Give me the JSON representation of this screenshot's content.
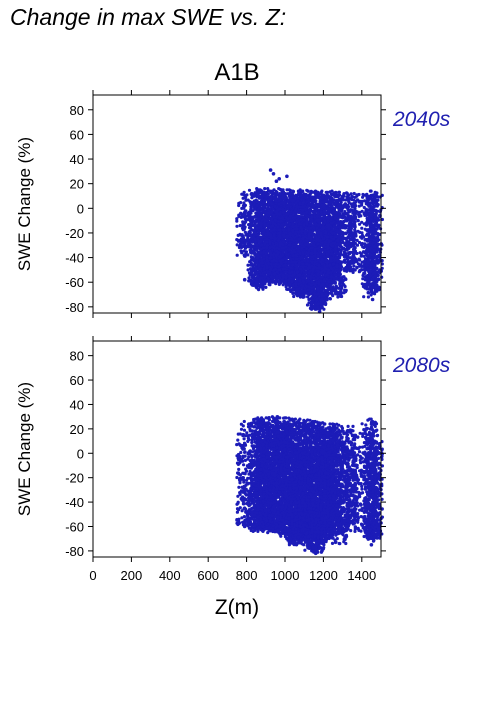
{
  "figure": {
    "title": "Change in max SWE vs. Z:",
    "scenario": "A1B",
    "xlabel": "Z(m)",
    "point_color": "#1c1cb8",
    "label_color": "#2020b0"
  },
  "chart_data": [
    {
      "type": "scatter",
      "panel_label": "2040s",
      "ylabel": "SWE Change (%)",
      "xlim": [
        0,
        1500
      ],
      "ylim": [
        -85,
        92
      ],
      "xticks": [
        0,
        200,
        400,
        600,
        800,
        1000,
        1200,
        1400
      ],
      "yticks": [
        -80,
        -60,
        -40,
        -20,
        0,
        20,
        40,
        60,
        80
      ],
      "show_x_tick_labels": false,
      "columns": [
        {
          "x": 790,
          "ymin": -39,
          "ymax": 13
        },
        {
          "x": 848,
          "ymin": -64,
          "ymax": 16
        },
        {
          "x": 862,
          "ymin": -66,
          "ymax": 15
        },
        {
          "x": 878,
          "ymin": -62,
          "ymax": 15
        },
        {
          "x": 895,
          "ymin": -58,
          "ymax": 16
        },
        {
          "x": 912,
          "ymin": -60,
          "ymax": 16
        },
        {
          "x": 928,
          "ymin": -62,
          "ymax": 14
        },
        {
          "x": 945,
          "ymin": -56,
          "ymax": 15
        },
        {
          "x": 962,
          "ymin": -55,
          "ymax": 16
        },
        {
          "x": 978,
          "ymin": -58,
          "ymax": 15
        },
        {
          "x": 995,
          "ymin": -62,
          "ymax": 15
        },
        {
          "x": 1012,
          "ymin": -60,
          "ymax": 15
        },
        {
          "x": 1028,
          "ymin": -62,
          "ymax": 15
        },
        {
          "x": 1045,
          "ymin": -66,
          "ymax": 14
        },
        {
          "x": 1062,
          "ymin": -70,
          "ymax": 14
        },
        {
          "x": 1078,
          "ymin": -72,
          "ymax": 15
        },
        {
          "x": 1095,
          "ymin": -68,
          "ymax": 14
        },
        {
          "x": 1112,
          "ymin": -66,
          "ymax": 14
        },
        {
          "x": 1128,
          "ymin": -74,
          "ymax": 14
        },
        {
          "x": 1145,
          "ymin": -80,
          "ymax": 13
        },
        {
          "x": 1162,
          "ymin": -82,
          "ymax": 14
        },
        {
          "x": 1178,
          "ymin": -82,
          "ymax": 13
        },
        {
          "x": 1195,
          "ymin": -75,
          "ymax": 14
        },
        {
          "x": 1212,
          "ymin": -70,
          "ymax": 13
        },
        {
          "x": 1228,
          "ymin": -66,
          "ymax": 13
        },
        {
          "x": 1245,
          "ymin": -58,
          "ymax": 14
        },
        {
          "x": 1262,
          "ymin": -60,
          "ymax": 13
        },
        {
          "x": 1280,
          "ymin": -72,
          "ymax": 13
        },
        {
          "x": 1330,
          "ymin": -46,
          "ymax": 12
        },
        {
          "x": 1360,
          "ymin": -52,
          "ymax": 12
        },
        {
          "x": 1442,
          "ymin": -72,
          "ymax": 14
        },
        {
          "x": 1455,
          "ymin": -68,
          "ymax": 14
        },
        {
          "x": 1466,
          "ymin": -58,
          "ymax": 13
        }
      ],
      "outliers": [
        {
          "x": 790,
          "y": -58
        },
        {
          "x": 925,
          "y": 31
        },
        {
          "x": 940,
          "y": 28
        },
        {
          "x": 955,
          "y": 22
        },
        {
          "x": 1010,
          "y": 26
        },
        {
          "x": 970,
          "y": 24
        },
        {
          "x": 1180,
          "y": -84
        },
        {
          "x": 1456,
          "y": -74
        }
      ]
    },
    {
      "type": "scatter",
      "panel_label": "2080s",
      "ylabel": "SWE Change (%)",
      "xlim": [
        0,
        1500
      ],
      "ylim": [
        -85,
        92
      ],
      "xticks": [
        0,
        200,
        400,
        600,
        800,
        1000,
        1200,
        1400
      ],
      "yticks": [
        -80,
        -60,
        -40,
        -20,
        0,
        20,
        40,
        60,
        80
      ],
      "show_x_tick_labels": true,
      "columns": [
        {
          "x": 790,
          "ymin": -59,
          "ymax": 26
        },
        {
          "x": 848,
          "ymin": -62,
          "ymax": 28
        },
        {
          "x": 862,
          "ymin": -64,
          "ymax": 29
        },
        {
          "x": 878,
          "ymin": -60,
          "ymax": 29
        },
        {
          "x": 895,
          "ymin": -62,
          "ymax": 29
        },
        {
          "x": 912,
          "ymin": -65,
          "ymax": 29
        },
        {
          "x": 928,
          "ymin": -62,
          "ymax": 30
        },
        {
          "x": 945,
          "ymin": -60,
          "ymax": 29
        },
        {
          "x": 962,
          "ymin": -63,
          "ymax": 30
        },
        {
          "x": 978,
          "ymin": -65,
          "ymax": 29
        },
        {
          "x": 995,
          "ymin": -66,
          "ymax": 29
        },
        {
          "x": 1012,
          "ymin": -70,
          "ymax": 29
        },
        {
          "x": 1028,
          "ymin": -68,
          "ymax": 28
        },
        {
          "x": 1045,
          "ymin": -72,
          "ymax": 28
        },
        {
          "x": 1062,
          "ymin": -75,
          "ymax": 28
        },
        {
          "x": 1078,
          "ymin": -70,
          "ymax": 28
        },
        {
          "x": 1095,
          "ymin": -68,
          "ymax": 27
        },
        {
          "x": 1112,
          "ymin": -72,
          "ymax": 26
        },
        {
          "x": 1128,
          "ymin": -76,
          "ymax": 27
        },
        {
          "x": 1145,
          "ymin": -80,
          "ymax": 26
        },
        {
          "x": 1162,
          "ymin": -82,
          "ymax": 26
        },
        {
          "x": 1178,
          "ymin": -78,
          "ymax": 25
        },
        {
          "x": 1195,
          "ymin": -72,
          "ymax": 25
        },
        {
          "x": 1212,
          "ymin": -70,
          "ymax": 24
        },
        {
          "x": 1228,
          "ymin": -64,
          "ymax": 24
        },
        {
          "x": 1245,
          "ymin": -62,
          "ymax": 24
        },
        {
          "x": 1262,
          "ymin": -66,
          "ymax": 23
        },
        {
          "x": 1280,
          "ymin": -74,
          "ymax": 23
        },
        {
          "x": 1330,
          "ymin": -58,
          "ymax": 22
        },
        {
          "x": 1360,
          "ymin": -64,
          "ymax": 22
        },
        {
          "x": 1442,
          "ymin": -70,
          "ymax": 28
        },
        {
          "x": 1455,
          "ymin": -68,
          "ymax": 28
        },
        {
          "x": 1466,
          "ymin": -72,
          "ymax": 18
        }
      ],
      "outliers": [
        {
          "x": 790,
          "y": -60
        },
        {
          "x": 1160,
          "y": -82
        },
        {
          "x": 1170,
          "y": -81
        },
        {
          "x": 1450,
          "y": -75
        }
      ]
    }
  ]
}
